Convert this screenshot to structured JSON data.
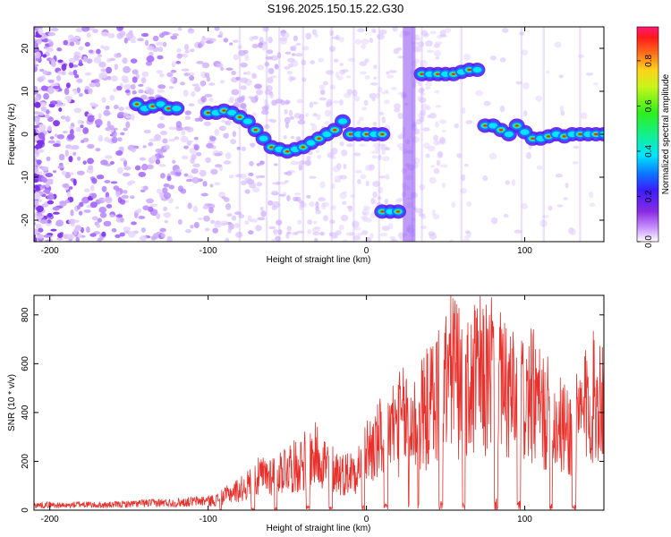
{
  "title": "S196.2025.150.15.22.G30",
  "chart_data": [
    {
      "type": "heatmap",
      "xlabel": "Height of straight line (km)",
      "ylabel": "Frequency (Hz)",
      "xlim": [
        -210,
        150
      ],
      "ylim": [
        -25,
        25
      ],
      "xticks": [
        -200,
        -100,
        0,
        100
      ],
      "yticks": [
        -20,
        -10,
        0,
        10,
        20
      ],
      "colorbar": {
        "label": "Normalized spectral amplitude",
        "range": [
          0.0,
          0.95
        ],
        "ticks": [
          0.0,
          0.2,
          0.4,
          0.6,
          0.8
        ]
      },
      "ridges": [
        {
          "x": [
            -145,
            -140,
            -135,
            -130,
            -125,
            -120
          ],
          "y": [
            7,
            6,
            6.5,
            7,
            6,
            6
          ]
        },
        {
          "x": [
            -100,
            -95,
            -90,
            -85,
            -80,
            -75,
            -70,
            -65,
            -60,
            -55,
            -50,
            -45,
            -40,
            -35,
            -30,
            -25,
            -20,
            -15
          ],
          "y": [
            5,
            5,
            5.5,
            5,
            4,
            3,
            1,
            -1,
            -3,
            -3.5,
            -4,
            -3.5,
            -3,
            -2,
            -1,
            0,
            1,
            3
          ]
        },
        {
          "x": [
            -10,
            -5,
            0,
            5,
            10
          ],
          "y": [
            0,
            0,
            0,
            0,
            0
          ]
        },
        {
          "x": [
            10,
            15,
            20
          ],
          "y": [
            -18,
            -18,
            -18
          ]
        },
        {
          "x": [
            35,
            40,
            45,
            50,
            55,
            60,
            65,
            70
          ],
          "y": [
            14,
            14,
            14,
            14,
            14,
            14.5,
            15,
            15
          ]
        },
        {
          "x": [
            75,
            80,
            85,
            90,
            95,
            100,
            105,
            110,
            115,
            120,
            125,
            130,
            135,
            140,
            145,
            150
          ],
          "y": [
            2,
            2,
            1,
            0,
            2,
            0.5,
            -1,
            -1,
            -0.5,
            0,
            -0.5,
            0,
            0,
            0,
            0,
            0
          ]
        }
      ]
    },
    {
      "type": "line",
      "xlabel": "Height of straight line (km)",
      "ylabel": "SNR (10 * v/v)",
      "xlim": [
        -210,
        150
      ],
      "ylim": [
        0,
        880
      ],
      "xticks": [
        -200,
        -100,
        0,
        100
      ],
      "yticks": [
        0,
        200,
        400,
        600,
        800
      ],
      "series": [
        {
          "color": "#e8312c",
          "x": [
            -210,
            -200,
            -190,
            -180,
            -170,
            -160,
            -150,
            -140,
            -130,
            -120,
            -110,
            -100,
            -95,
            -90,
            -85,
            -80,
            -75,
            -70,
            -65,
            -60,
            -55,
            -50,
            -45,
            -40,
            -35,
            -30,
            -25,
            -20,
            -15,
            -10,
            -5,
            0,
            5,
            10,
            15,
            20,
            25,
            30,
            35,
            40,
            45,
            50,
            55,
            60,
            65,
            70,
            75,
            80,
            85,
            90,
            95,
            100,
            105,
            110,
            115,
            120,
            125,
            130,
            135,
            140,
            145,
            150
          ],
          "y": [
            20,
            22,
            18,
            25,
            20,
            22,
            25,
            28,
            30,
            30,
            35,
            40,
            45,
            60,
            80,
            90,
            110,
            140,
            150,
            160,
            170,
            200,
            190,
            220,
            230,
            250,
            200,
            180,
            160,
            170,
            200,
            260,
            280,
            320,
            360,
            380,
            400,
            380,
            420,
            460,
            520,
            560,
            680,
            500,
            520,
            600,
            560,
            640,
            540,
            500,
            480,
            480,
            500,
            440,
            420,
            380,
            360,
            340,
            400,
            480,
            500,
            520
          ]
        }
      ]
    }
  ]
}
